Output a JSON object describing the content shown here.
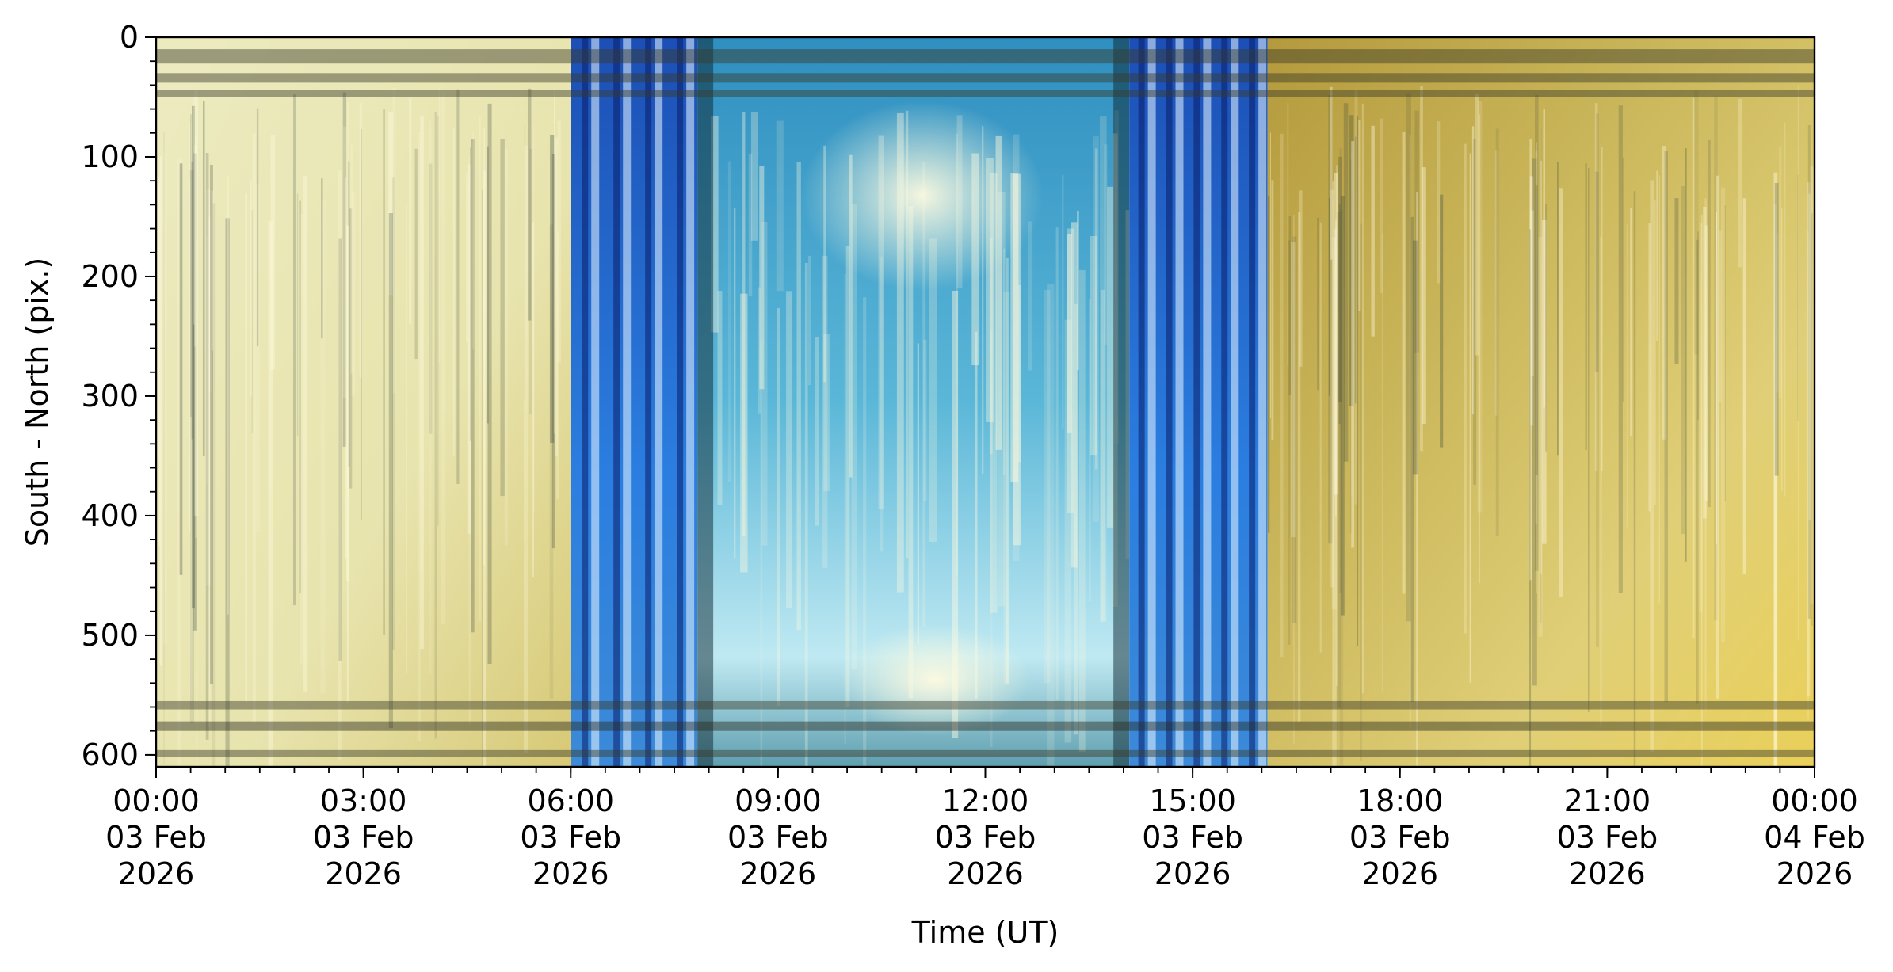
{
  "chart_data": {
    "type": "heatmap",
    "title": "",
    "xlabel": "Time (UT)",
    "ylabel": "South - North (pix.)",
    "xlim": [
      "2026-02-03T00:00",
      "2026-02-04T00:00"
    ],
    "ylim": [
      610,
      0
    ],
    "y_inverted": true,
    "x_ticks": [
      {
        "time": "2026-02-03T00:00",
        "lines": [
          "00:00",
          "03 Feb",
          "2026"
        ]
      },
      {
        "time": "2026-02-03T03:00",
        "lines": [
          "03:00",
          "03 Feb",
          "2026"
        ]
      },
      {
        "time": "2026-02-03T06:00",
        "lines": [
          "06:00",
          "03 Feb",
          "2026"
        ]
      },
      {
        "time": "2026-02-03T09:00",
        "lines": [
          "09:00",
          "03 Feb",
          "2026"
        ]
      },
      {
        "time": "2026-02-03T12:00",
        "lines": [
          "12:00",
          "03 Feb",
          "2026"
        ]
      },
      {
        "time": "2026-02-03T15:00",
        "lines": [
          "15:00",
          "03 Feb",
          "2026"
        ]
      },
      {
        "time": "2026-02-03T18:00",
        "lines": [
          "18:00",
          "03 Feb",
          "2026"
        ]
      },
      {
        "time": "2026-02-03T21:00",
        "lines": [
          "21:00",
          "03 Feb",
          "2026"
        ]
      },
      {
        "time": "2026-02-04T00:00",
        "lines": [
          "00:00",
          "04 Feb",
          "2026"
        ]
      }
    ],
    "x_minor_tick_minutes": 30,
    "y_ticks": [
      0,
      100,
      200,
      300,
      400,
      500,
      600
    ],
    "y_minor_step": 20,
    "grid": false,
    "legend": "none",
    "segments": [
      {
        "start": "2026-02-03T00:00",
        "end": "2026-02-03T06:00",
        "kind": "night",
        "color": "#e6e6b6"
      },
      {
        "start": "2026-02-03T06:00",
        "end": "2026-02-03T07:50",
        "kind": "twilight",
        "color": "#2a6fd6"
      },
      {
        "start": "2026-02-03T07:50",
        "end": "2026-02-03T14:05",
        "kind": "day",
        "color": "#4aa6cf"
      },
      {
        "start": "2026-02-03T14:05",
        "end": "2026-02-03T16:05",
        "kind": "twilight",
        "color": "#2a6fd6"
      },
      {
        "start": "2026-02-03T16:05",
        "end": "2026-02-04T00:00",
        "kind": "night",
        "color": "#d9c25a"
      }
    ],
    "horizontal_bands": [
      {
        "from": 10,
        "to": 22,
        "color": "#3a3a28"
      },
      {
        "from": 30,
        "to": 38,
        "color": "#3a3a28"
      },
      {
        "from": 44,
        "to": 50,
        "color": "#3a3a28"
      },
      {
        "from": 555,
        "to": 562,
        "color": "#3a3a28"
      },
      {
        "from": 572,
        "to": 580,
        "color": "#2a2a20"
      },
      {
        "from": 596,
        "to": 602,
        "color": "#3a3a28"
      }
    ]
  }
}
